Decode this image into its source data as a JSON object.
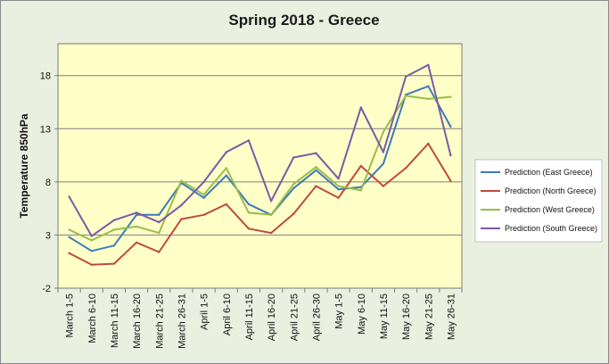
{
  "chart_data": {
    "type": "line",
    "title": "Spring 2018 - Greece",
    "xlabel": "",
    "ylabel": "Temperature 850hPa",
    "ylim": [
      -2,
      21
    ],
    "yticks": [
      -2,
      3,
      8,
      13,
      18
    ],
    "grid": true,
    "legend_position": "right",
    "plot_background": "#ffffc8",
    "categories": [
      "March 1-5",
      "March 6-10",
      "March 11-15",
      "March 16-20",
      "March 21-25",
      "March 26-31",
      "April 1-5",
      "April 6-10",
      "April 11-15",
      "April 16-20",
      "April 21-25",
      "April 26-30",
      "May 1-5",
      "May 6-10",
      "May 11-15",
      "May 16-20",
      "May 21-25",
      "May 26-31"
    ],
    "series": [
      {
        "name": "Prediction (East Greece)",
        "color": "#3c7ab8",
        "values": [
          2.8,
          1.5,
          2.0,
          4.9,
          4.9,
          7.9,
          6.5,
          8.6,
          5.9,
          4.9,
          7.4,
          9.1,
          7.3,
          7.5,
          9.7,
          16.2,
          17.0,
          13.2
        ]
      },
      {
        "name": "Prediction (North Greece)",
        "color": "#bf4a3f",
        "values": [
          1.3,
          0.2,
          0.3,
          2.3,
          1.4,
          4.5,
          4.9,
          5.9,
          3.6,
          3.2,
          5.0,
          7.6,
          6.5,
          9.5,
          7.6,
          9.3,
          11.6,
          8.1
        ]
      },
      {
        "name": "Prediction (West Greece)",
        "color": "#97bd4a",
        "values": [
          3.5,
          2.5,
          3.5,
          3.8,
          3.2,
          8.1,
          6.8,
          9.3,
          5.1,
          4.9,
          7.8,
          9.4,
          7.6,
          7.2,
          12.7,
          16.1,
          15.8,
          16.0
        ]
      },
      {
        "name": "Prediction (South Greece)",
        "color": "#7b5aa6",
        "values": [
          6.6,
          2.9,
          4.4,
          5.1,
          4.2,
          5.8,
          8.0,
          10.8,
          11.9,
          6.2,
          10.3,
          10.7,
          8.3,
          15.0,
          10.8,
          17.9,
          19.0,
          10.5
        ]
      }
    ]
  }
}
